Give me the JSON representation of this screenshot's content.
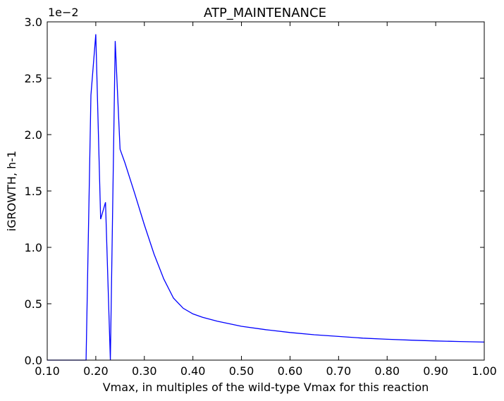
{
  "chart_data": {
    "type": "line",
    "title": "ATP_MAINTENANCE",
    "xlabel": "Vmax, in multiples of the wild-type Vmax for this reaction",
    "ylabel": "iGROWTH, h-1",
    "y_offset_label": "1e−2",
    "xlim": [
      0.1,
      1.0
    ],
    "ylim": [
      0.0,
      3.0
    ],
    "x_ticks": [
      0.1,
      0.2,
      0.3,
      0.4,
      0.5,
      0.6,
      0.7,
      0.8,
      0.9,
      1.0
    ],
    "x_tick_labels": [
      "0.10",
      "0.20",
      "0.30",
      "0.40",
      "0.50",
      "0.60",
      "0.70",
      "0.80",
      "0.90",
      "1.00"
    ],
    "y_ticks": [
      0.0,
      0.5,
      1.0,
      1.5,
      2.0,
      2.5,
      3.0
    ],
    "y_tick_labels": [
      "0.0",
      "0.5",
      "1.0",
      "1.5",
      "2.0",
      "2.5",
      "3.0"
    ],
    "grid": false,
    "line_color": "#0000ff",
    "series": [
      {
        "x": [
          0.1,
          0.18,
          0.19,
          0.2,
          0.21,
          0.22,
          0.23,
          0.24,
          0.25,
          0.26,
          0.28,
          0.3,
          0.32,
          0.34,
          0.36,
          0.38,
          0.4,
          0.42,
          0.45,
          0.5,
          0.55,
          0.6,
          0.65,
          0.7,
          0.75,
          0.8,
          0.85,
          0.9,
          0.95,
          1.0
        ],
        "y": [
          0.0,
          0.0,
          2.35,
          2.89,
          1.25,
          1.4,
          0.0,
          2.83,
          1.87,
          1.75,
          1.48,
          1.2,
          0.94,
          0.72,
          0.55,
          0.46,
          0.41,
          0.38,
          0.345,
          0.3,
          0.27,
          0.245,
          0.225,
          0.21,
          0.195,
          0.185,
          0.177,
          0.17,
          0.165,
          0.16
        ]
      }
    ]
  }
}
